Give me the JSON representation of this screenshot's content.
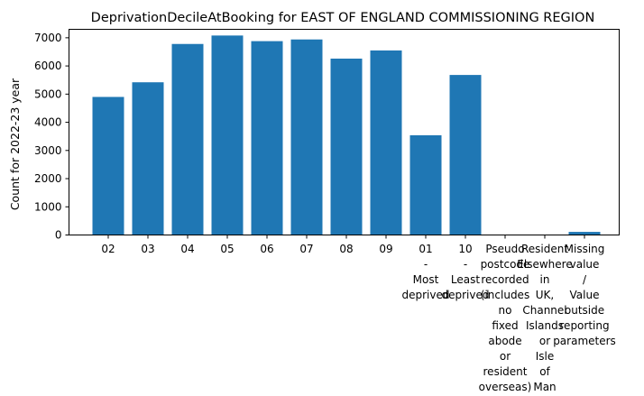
{
  "chart_data": {
    "type": "bar",
    "title": "DeprivationDecileAtBooking for EAST OF ENGLAND COMMISSIONING REGION",
    "xlabel": "",
    "ylabel": "Count for 2022-23 year",
    "ylim": [
      0,
      7300
    ],
    "yticks": [
      0,
      1000,
      2000,
      3000,
      4000,
      5000,
      6000,
      7000
    ],
    "grid": false,
    "bar_color": "#1f77b4",
    "categories": [
      "02",
      "03",
      "04",
      "05",
      "06",
      "07",
      "08",
      "09",
      "01\n-\nMost\ndeprived",
      "10\n-\nLeast\ndeprived",
      "Pseudo\npostcode\nrecorded\n(includes\nno\nfixed\nabode\nor\nresident\noverseas)",
      "Resident\nElsewhere\nin\nUK,\nChannel\nIslands\nor\nIsle\nof\nMan",
      "Missing\nvalue\n/\nValue\noutside\nreporting\nparameters"
    ],
    "values": [
      4900,
      5420,
      6780,
      7080,
      6880,
      6940,
      6260,
      6550,
      3540,
      5680,
      0,
      0,
      110
    ]
  }
}
